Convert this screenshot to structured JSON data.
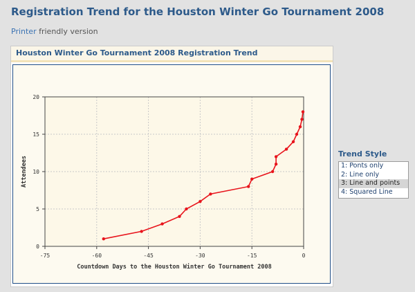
{
  "page": {
    "title": "Registration Trend for the Houston Winter Go Tournament 2008",
    "printer_link": "Printer",
    "printer_rest": "friendly version"
  },
  "panel": {
    "title": "Houston Winter Go Tournament 2008 Registration Trend"
  },
  "trend_style": {
    "title": "Trend Style",
    "options": [
      "1: Ponts only",
      "2: Line only",
      "3: Line and points",
      "4: Squared Line"
    ],
    "selected_index": 2
  },
  "colors": {
    "series": "#e8141c",
    "axis_text": "#333333",
    "grid": "#c8c8c8",
    "plot_bg": "#fdf8e8"
  },
  "chart_data": {
    "type": "line",
    "title": "",
    "xlabel": "Countdown Days to the Houston Winter Go Tournament 2008",
    "ylabel": "Attendees",
    "xlim": [
      -75,
      0
    ],
    "ylim": [
      0,
      20
    ],
    "xticks": [
      -75,
      -60,
      -45,
      -30,
      -15,
      0
    ],
    "yticks": [
      0,
      5,
      10,
      15,
      20
    ],
    "grid": true,
    "legend": "none",
    "series": [
      {
        "x": [
          -58,
          -47,
          -41,
          -36,
          -34,
          -30,
          -27,
          -16,
          -15,
          -9,
          -8,
          -8,
          -5,
          -3,
          -2,
          -1,
          -0.5,
          -0.2
        ],
        "values": [
          1,
          2,
          3,
          4,
          5,
          6,
          7,
          8,
          9,
          10,
          11,
          12,
          13,
          14,
          15,
          16,
          17,
          18
        ]
      }
    ]
  }
}
